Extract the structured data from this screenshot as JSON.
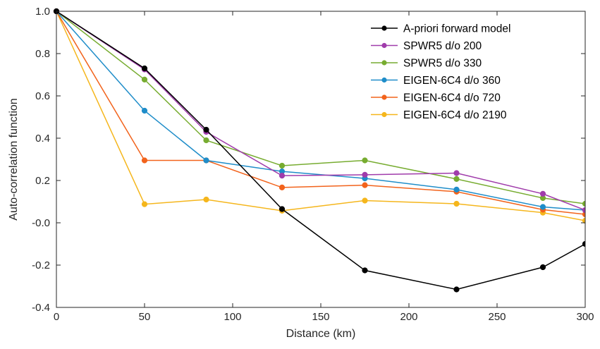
{
  "chart_data": {
    "type": "line",
    "xlabel": "Distance (km)",
    "ylabel": "Auto-correlation function",
    "xlim": [
      0,
      300
    ],
    "ylim": [
      -0.4,
      1.0
    ],
    "x_ticks": [
      0,
      50,
      100,
      150,
      200,
      250,
      300
    ],
    "x_tick_labels": [
      "0",
      "50",
      "100",
      "150",
      "200",
      "250",
      "300"
    ],
    "y_ticks": [
      -0.4,
      -0.2,
      0.0,
      0.2,
      0.4,
      0.6,
      0.8,
      1.0
    ],
    "y_tick_labels": [
      "-0.4",
      "-0.2",
      "-0.0",
      "0.2",
      "0.4",
      "0.6",
      "0.8",
      "1.0"
    ],
    "grid": false,
    "legend_position": "top-right",
    "series": [
      {
        "name": "A-priori forward model",
        "color": "#000000",
        "x": [
          0,
          50,
          85,
          128,
          175,
          227,
          276,
          300
        ],
        "y": [
          1.0,
          0.73,
          0.44,
          0.065,
          -0.225,
          -0.315,
          -0.21,
          -0.1
        ]
      },
      {
        "name": "SPWR5 d/o 200",
        "color": "#A03CAB",
        "x": [
          0,
          50,
          85,
          128,
          175,
          227,
          276,
          300
        ],
        "y": [
          1.0,
          0.725,
          0.43,
          0.223,
          0.227,
          0.235,
          0.137,
          0.06
        ]
      },
      {
        "name": "SPWR5 d/o 330",
        "color": "#77AC30",
        "x": [
          0,
          50,
          85,
          128,
          175,
          227,
          276,
          300
        ],
        "y": [
          1.0,
          0.677,
          0.39,
          0.27,
          0.295,
          0.207,
          0.117,
          0.09
        ]
      },
      {
        "name": "EIGEN-6C4 d/o 360",
        "color": "#1F8DC9",
        "x": [
          0,
          50,
          85,
          128,
          175,
          227,
          276,
          300
        ],
        "y": [
          1.0,
          0.53,
          0.295,
          0.243,
          0.21,
          0.157,
          0.075,
          0.06
        ]
      },
      {
        "name": "EIGEN-6C4 d/o 720",
        "color": "#F2631C",
        "x": [
          0,
          50,
          85,
          128,
          175,
          227,
          276,
          300
        ],
        "y": [
          1.0,
          0.295,
          0.295,
          0.167,
          0.178,
          0.147,
          0.062,
          0.04
        ]
      },
      {
        "name": "EIGEN-6C4 d/o 2190",
        "color": "#F5B61C",
        "x": [
          0,
          50,
          85,
          128,
          175,
          227,
          276,
          300
        ],
        "y": [
          1.0,
          0.088,
          0.11,
          0.057,
          0.105,
          0.09,
          0.048,
          0.01
        ]
      }
    ]
  }
}
